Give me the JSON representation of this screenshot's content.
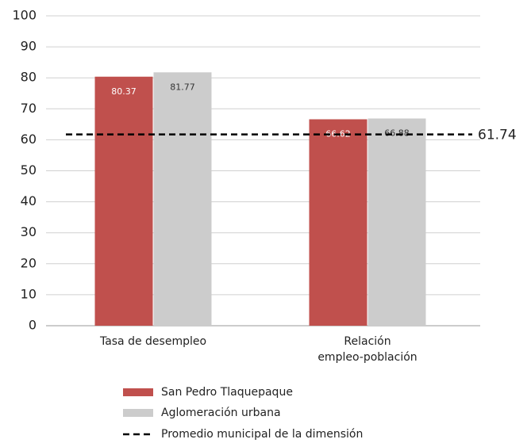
{
  "chart_data": {
    "type": "bar",
    "categories": [
      "Tasa de desempleo",
      "Relación\nempleo-población"
    ],
    "series": [
      {
        "name": "San Pedro Tlaquepaque",
        "color": "#c0504d",
        "values": [
          80.37,
          66.62
        ]
      },
      {
        "name": "Aglomeración urbana",
        "color": "#cccccc",
        "values": [
          81.77,
          66.88
        ]
      }
    ],
    "reference_line": {
      "name": "Promedio municipal de la dimensión",
      "value": 61.74,
      "color": "#000000"
    },
    "ylim": [
      0,
      100
    ],
    "yticks": [
      0,
      10,
      20,
      30,
      40,
      50,
      60,
      70,
      80,
      90,
      100
    ],
    "grid": true
  }
}
